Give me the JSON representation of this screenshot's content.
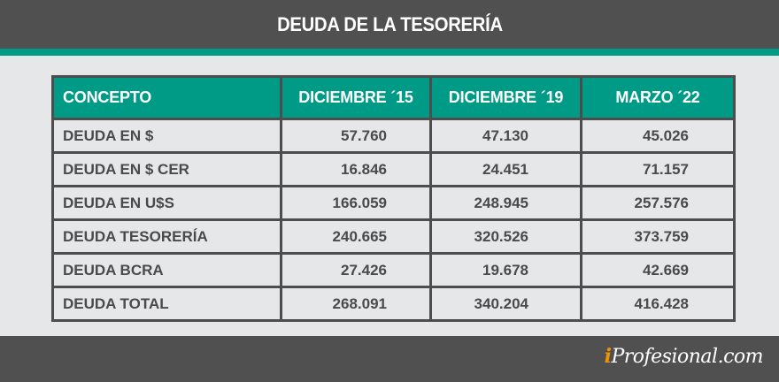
{
  "header": {
    "title": "DEUDA DE LA TESORERÍA"
  },
  "colors": {
    "header_bar": "#505050",
    "accent": "#009b86",
    "background": "#e6e7e8",
    "border": "#4d4d4d",
    "text": "#4a4a4a",
    "brand_i": "#f39200"
  },
  "table": {
    "columns": [
      "CONCEPTO",
      "DICIEMBRE ´15",
      "DICIEMBRE ´19",
      "MARZO ´22"
    ],
    "rows": [
      {
        "concept": "DEUDA EN $",
        "values": [
          "57.760",
          "47.130",
          "45.026"
        ]
      },
      {
        "concept": "DEUDA EN $ CER",
        "values": [
          "16.846",
          "24.451",
          "71.157"
        ]
      },
      {
        "concept": "DEUDA EN U$S",
        "values": [
          "166.059",
          "248.945",
          "257.576"
        ]
      },
      {
        "concept": "DEUDA TESORERÍA",
        "values": [
          "240.665",
          "320.526",
          "373.759"
        ]
      },
      {
        "concept": "DEUDA BCRA",
        "values": [
          "27.426",
          "19.678",
          "42.669"
        ]
      },
      {
        "concept": "DEUDA TOTAL",
        "values": [
          "268.091",
          "340.204",
          "416.428"
        ]
      }
    ]
  },
  "footer": {
    "brand_i": "i",
    "brand_rest": "Profesional.com"
  }
}
